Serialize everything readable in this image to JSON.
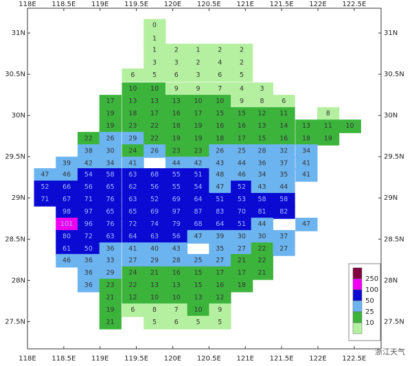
{
  "chart_data": {
    "type": "map",
    "xlim": [
      118,
      122.87
    ],
    "ylim": [
      27.17,
      31.3
    ],
    "xticks": [
      {
        "value": 118,
        "label": "118E"
      },
      {
        "value": 118.5,
        "label": "118.5E"
      },
      {
        "value": 119,
        "label": "119E"
      },
      {
        "value": 119.5,
        "label": "119.5E"
      },
      {
        "value": 120,
        "label": "120E"
      },
      {
        "value": 120.5,
        "label": "120.5E"
      },
      {
        "value": 121,
        "label": "121E"
      },
      {
        "value": 121.5,
        "label": "121.5E"
      },
      {
        "value": 122,
        "label": "122E"
      },
      {
        "value": 122.5,
        "label": "122.5E"
      }
    ],
    "yticks": [
      {
        "value": 27.5,
        "label": "27.5N"
      },
      {
        "value": 28,
        "label": "28N"
      },
      {
        "value": 28.5,
        "label": "28.5N"
      },
      {
        "value": 29,
        "label": "29N"
      },
      {
        "value": 29.5,
        "label": "29.5N"
      },
      {
        "value": 30,
        "label": "30N"
      },
      {
        "value": 30.5,
        "label": "30.5N"
      },
      {
        "value": 31,
        "label": "31N"
      }
    ],
    "lon": [
      118.24,
      118.54,
      118.84,
      119.14,
      119.45,
      119.75,
      120.05,
      120.35,
      120.65,
      120.95,
      121.23,
      121.53,
      121.84,
      122.14,
      122.44
    ],
    "lat": [
      31.09,
      30.93,
      30.79,
      30.64,
      30.49,
      30.32,
      30.17,
      30.02,
      29.87,
      29.72,
      29.57,
      29.42,
      29.28,
      29.13,
      28.98,
      28.83,
      28.68,
      28.53,
      28.38,
      28.24,
      28.09,
      27.94,
      27.79,
      27.64,
      27.49
    ],
    "values": [
      [
        null,
        null,
        null,
        null,
        null,
        0,
        null,
        null,
        null,
        null,
        null,
        null,
        null,
        null,
        null
      ],
      [
        null,
        null,
        null,
        null,
        null,
        1,
        null,
        null,
        null,
        null,
        null,
        null,
        null,
        null,
        null
      ],
      [
        null,
        null,
        null,
        null,
        null,
        1,
        2,
        1,
        2,
        2,
        null,
        null,
        null,
        null,
        null
      ],
      [
        null,
        null,
        null,
        null,
        null,
        3,
        3,
        2,
        4,
        2,
        null,
        null,
        null,
        null,
        null
      ],
      [
        null,
        null,
        null,
        null,
        6,
        5,
        6,
        3,
        6,
        5,
        null,
        null,
        null,
        null,
        null
      ],
      [
        null,
        null,
        null,
        null,
        10,
        10,
        9,
        9,
        7,
        4,
        3,
        null,
        null,
        null,
        null
      ],
      [
        null,
        null,
        null,
        17,
        13,
        13,
        13,
        10,
        10,
        9,
        8,
        6,
        null,
        null,
        null
      ],
      [
        null,
        null,
        null,
        19,
        18,
        17,
        16,
        17,
        15,
        15,
        12,
        11,
        null,
        8,
        null
      ],
      [
        null,
        null,
        null,
        19,
        23,
        22,
        18,
        19,
        16,
        16,
        13,
        14,
        13,
        11,
        10
      ],
      [
        null,
        null,
        22,
        26,
        29,
        22,
        19,
        19,
        18,
        17,
        15,
        16,
        18,
        19,
        null
      ],
      [
        null,
        null,
        38,
        30,
        24,
        26,
        23,
        23,
        26,
        25,
        28,
        32,
        34,
        null,
        null
      ],
      [
        null,
        39,
        42,
        34,
        41,
        null,
        44,
        42,
        43,
        44,
        36,
        37,
        41,
        null,
        null
      ],
      [
        47,
        46,
        54,
        58,
        63,
        68,
        55,
        51,
        48,
        46,
        34,
        35,
        41,
        null,
        null
      ],
      [
        52,
        66,
        56,
        65,
        62,
        56,
        55,
        54,
        47,
        52,
        43,
        44,
        null,
        null,
        null
      ],
      [
        71,
        67,
        71,
        76,
        63,
        52,
        69,
        64,
        51,
        53,
        58,
        58,
        null,
        null,
        null
      ],
      [
        null,
        98,
        97,
        65,
        65,
        69,
        97,
        87,
        83,
        70,
        81,
        82,
        null,
        null,
        null
      ],
      [
        null,
        101,
        96,
        76,
        72,
        74,
        79,
        68,
        64,
        51,
        44,
        null,
        47,
        null,
        null
      ],
      [
        null,
        80,
        72,
        63,
        64,
        63,
        56,
        47,
        39,
        30,
        30,
        37,
        null,
        null,
        null
      ],
      [
        null,
        61,
        50,
        36,
        41,
        40,
        43,
        null,
        35,
        27,
        22,
        27,
        null,
        null,
        null
      ],
      [
        null,
        46,
        36,
        33,
        27,
        29,
        28,
        25,
        27,
        21,
        22,
        null,
        null,
        null,
        null
      ],
      [
        null,
        null,
        36,
        29,
        24,
        21,
        16,
        15,
        17,
        17,
        21,
        null,
        null,
        null,
        null
      ],
      [
        null,
        null,
        36,
        23,
        22,
        13,
        13,
        15,
        16,
        18,
        null,
        null,
        null,
        null,
        null
      ],
      [
        null,
        null,
        null,
        21,
        12,
        10,
        10,
        13,
        12,
        null,
        null,
        null,
        null,
        null,
        null
      ],
      [
        null,
        null,
        null,
        19,
        6,
        8,
        7,
        10,
        9,
        null,
        null,
        null,
        null,
        null,
        null
      ],
      [
        null,
        null,
        null,
        21,
        null,
        5,
        6,
        5,
        5,
        null,
        null,
        null,
        null,
        null,
        null
      ]
    ],
    "legend": {
      "levels": [
        10,
        25,
        50,
        100,
        250
      ],
      "colors": [
        "#b4f0a0",
        "#3cb43c",
        "#6cb4f0",
        "#0a0ad2",
        "#f000f0",
        "#800040"
      ]
    },
    "watermark": "浙江天气"
  }
}
